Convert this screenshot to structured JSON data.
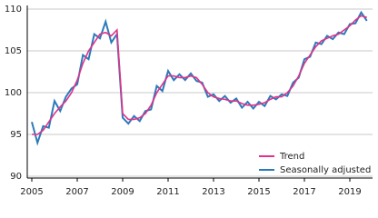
{
  "chart_data": {
    "type": "line",
    "x": [
      2005,
      2005.25,
      2005.5,
      2005.75,
      2006,
      2006.25,
      2006.5,
      2006.75,
      2007,
      2007.25,
      2007.5,
      2007.75,
      2008,
      2008.25,
      2008.5,
      2008.75,
      2009,
      2009.25,
      2009.5,
      2009.75,
      2010,
      2010.25,
      2010.5,
      2010.75,
      2011,
      2011.25,
      2011.5,
      2011.75,
      2012,
      2012.25,
      2012.5,
      2012.75,
      2013,
      2013.25,
      2013.5,
      2013.75,
      2014,
      2014.25,
      2014.5,
      2014.75,
      2015,
      2015.25,
      2015.5,
      2015.75,
      2016,
      2016.25,
      2016.5,
      2016.75,
      2017,
      2017.25,
      2017.5,
      2017.75,
      2018,
      2018.25,
      2018.5,
      2018.75,
      2019,
      2019.25,
      2019.5,
      2019.75
    ],
    "series": [
      {
        "name": "Trend",
        "color": "#e0338a",
        "values": [
          95.0,
          95.0,
          95.5,
          96.5,
          97.5,
          98.3,
          99.0,
          100.0,
          101.5,
          103.5,
          105.0,
          106.0,
          107.0,
          107.2,
          106.8,
          107.5,
          97.5,
          96.8,
          96.8,
          97.0,
          97.5,
          98.5,
          100.0,
          101.0,
          102.0,
          102.0,
          101.8,
          101.8,
          102.0,
          101.8,
          101.0,
          100.0,
          99.5,
          99.3,
          99.2,
          99.0,
          99.0,
          98.7,
          98.5,
          98.5,
          98.6,
          98.8,
          99.2,
          99.5,
          99.5,
          100.0,
          100.8,
          102.0,
          103.5,
          104.5,
          105.5,
          106.2,
          106.5,
          106.8,
          107.0,
          107.5,
          108.0,
          108.7,
          109.2,
          109.0
        ]
      },
      {
        "name": "Seasonally adjusted",
        "color": "#2b7bba",
        "values": [
          96.5,
          94.0,
          96.0,
          95.8,
          99.0,
          97.8,
          99.5,
          100.5,
          101.0,
          104.5,
          104.0,
          107.0,
          106.5,
          108.5,
          106.0,
          107.0,
          97.0,
          96.3,
          97.2,
          96.6,
          97.8,
          98.0,
          100.8,
          100.2,
          102.6,
          101.5,
          102.2,
          101.5,
          102.3,
          101.4,
          101.2,
          99.5,
          99.8,
          99.0,
          99.6,
          98.8,
          99.3,
          98.2,
          98.9,
          98.1,
          98.9,
          98.4,
          99.6,
          99.2,
          99.8,
          99.6,
          101.2,
          101.8,
          104.0,
          104.3,
          106.0,
          105.8,
          106.8,
          106.4,
          107.2,
          107.0,
          108.2,
          108.3,
          109.6,
          108.6
        ]
      }
    ],
    "xlim": [
      2004.8,
      2020
    ],
    "xticks": [
      2005,
      2007,
      2009,
      2011,
      2013,
      2015,
      2017,
      2019
    ],
    "ylim": [
      90,
      110
    ],
    "yticks": [
      90,
      95,
      100,
      105,
      110
    ],
    "grid": true,
    "legend": "lower right"
  }
}
